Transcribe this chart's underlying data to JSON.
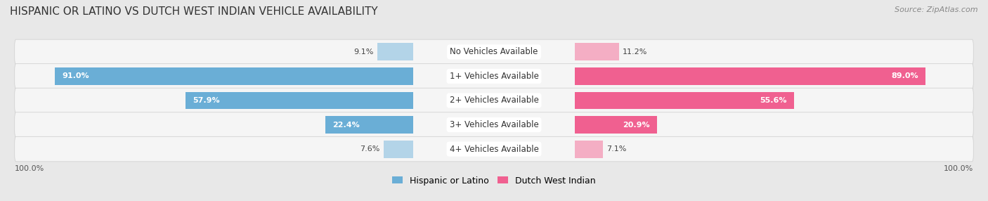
{
  "title": "HISPANIC OR LATINO VS DUTCH WEST INDIAN VEHICLE AVAILABILITY",
  "source": "Source: ZipAtlas.com",
  "categories": [
    "No Vehicles Available",
    "1+ Vehicles Available",
    "2+ Vehicles Available",
    "3+ Vehicles Available",
    "4+ Vehicles Available"
  ],
  "left_values": [
    9.1,
    91.0,
    57.9,
    22.4,
    7.6
  ],
  "right_values": [
    11.2,
    89.0,
    55.6,
    20.9,
    7.1
  ],
  "left_label": "Hispanic or Latino",
  "right_label": "Dutch West Indian",
  "left_color_large": "#6aaed6",
  "left_color_small": "#b3d4e8",
  "right_color_large": "#f06090",
  "right_color_small": "#f4aec4",
  "background_color": "#e8e8e8",
  "row_bg_color": "#f5f5f5",
  "max_value": 100.0,
  "x_min_label": "100.0%",
  "x_max_label": "100.0%",
  "large_threshold": 15.0
}
